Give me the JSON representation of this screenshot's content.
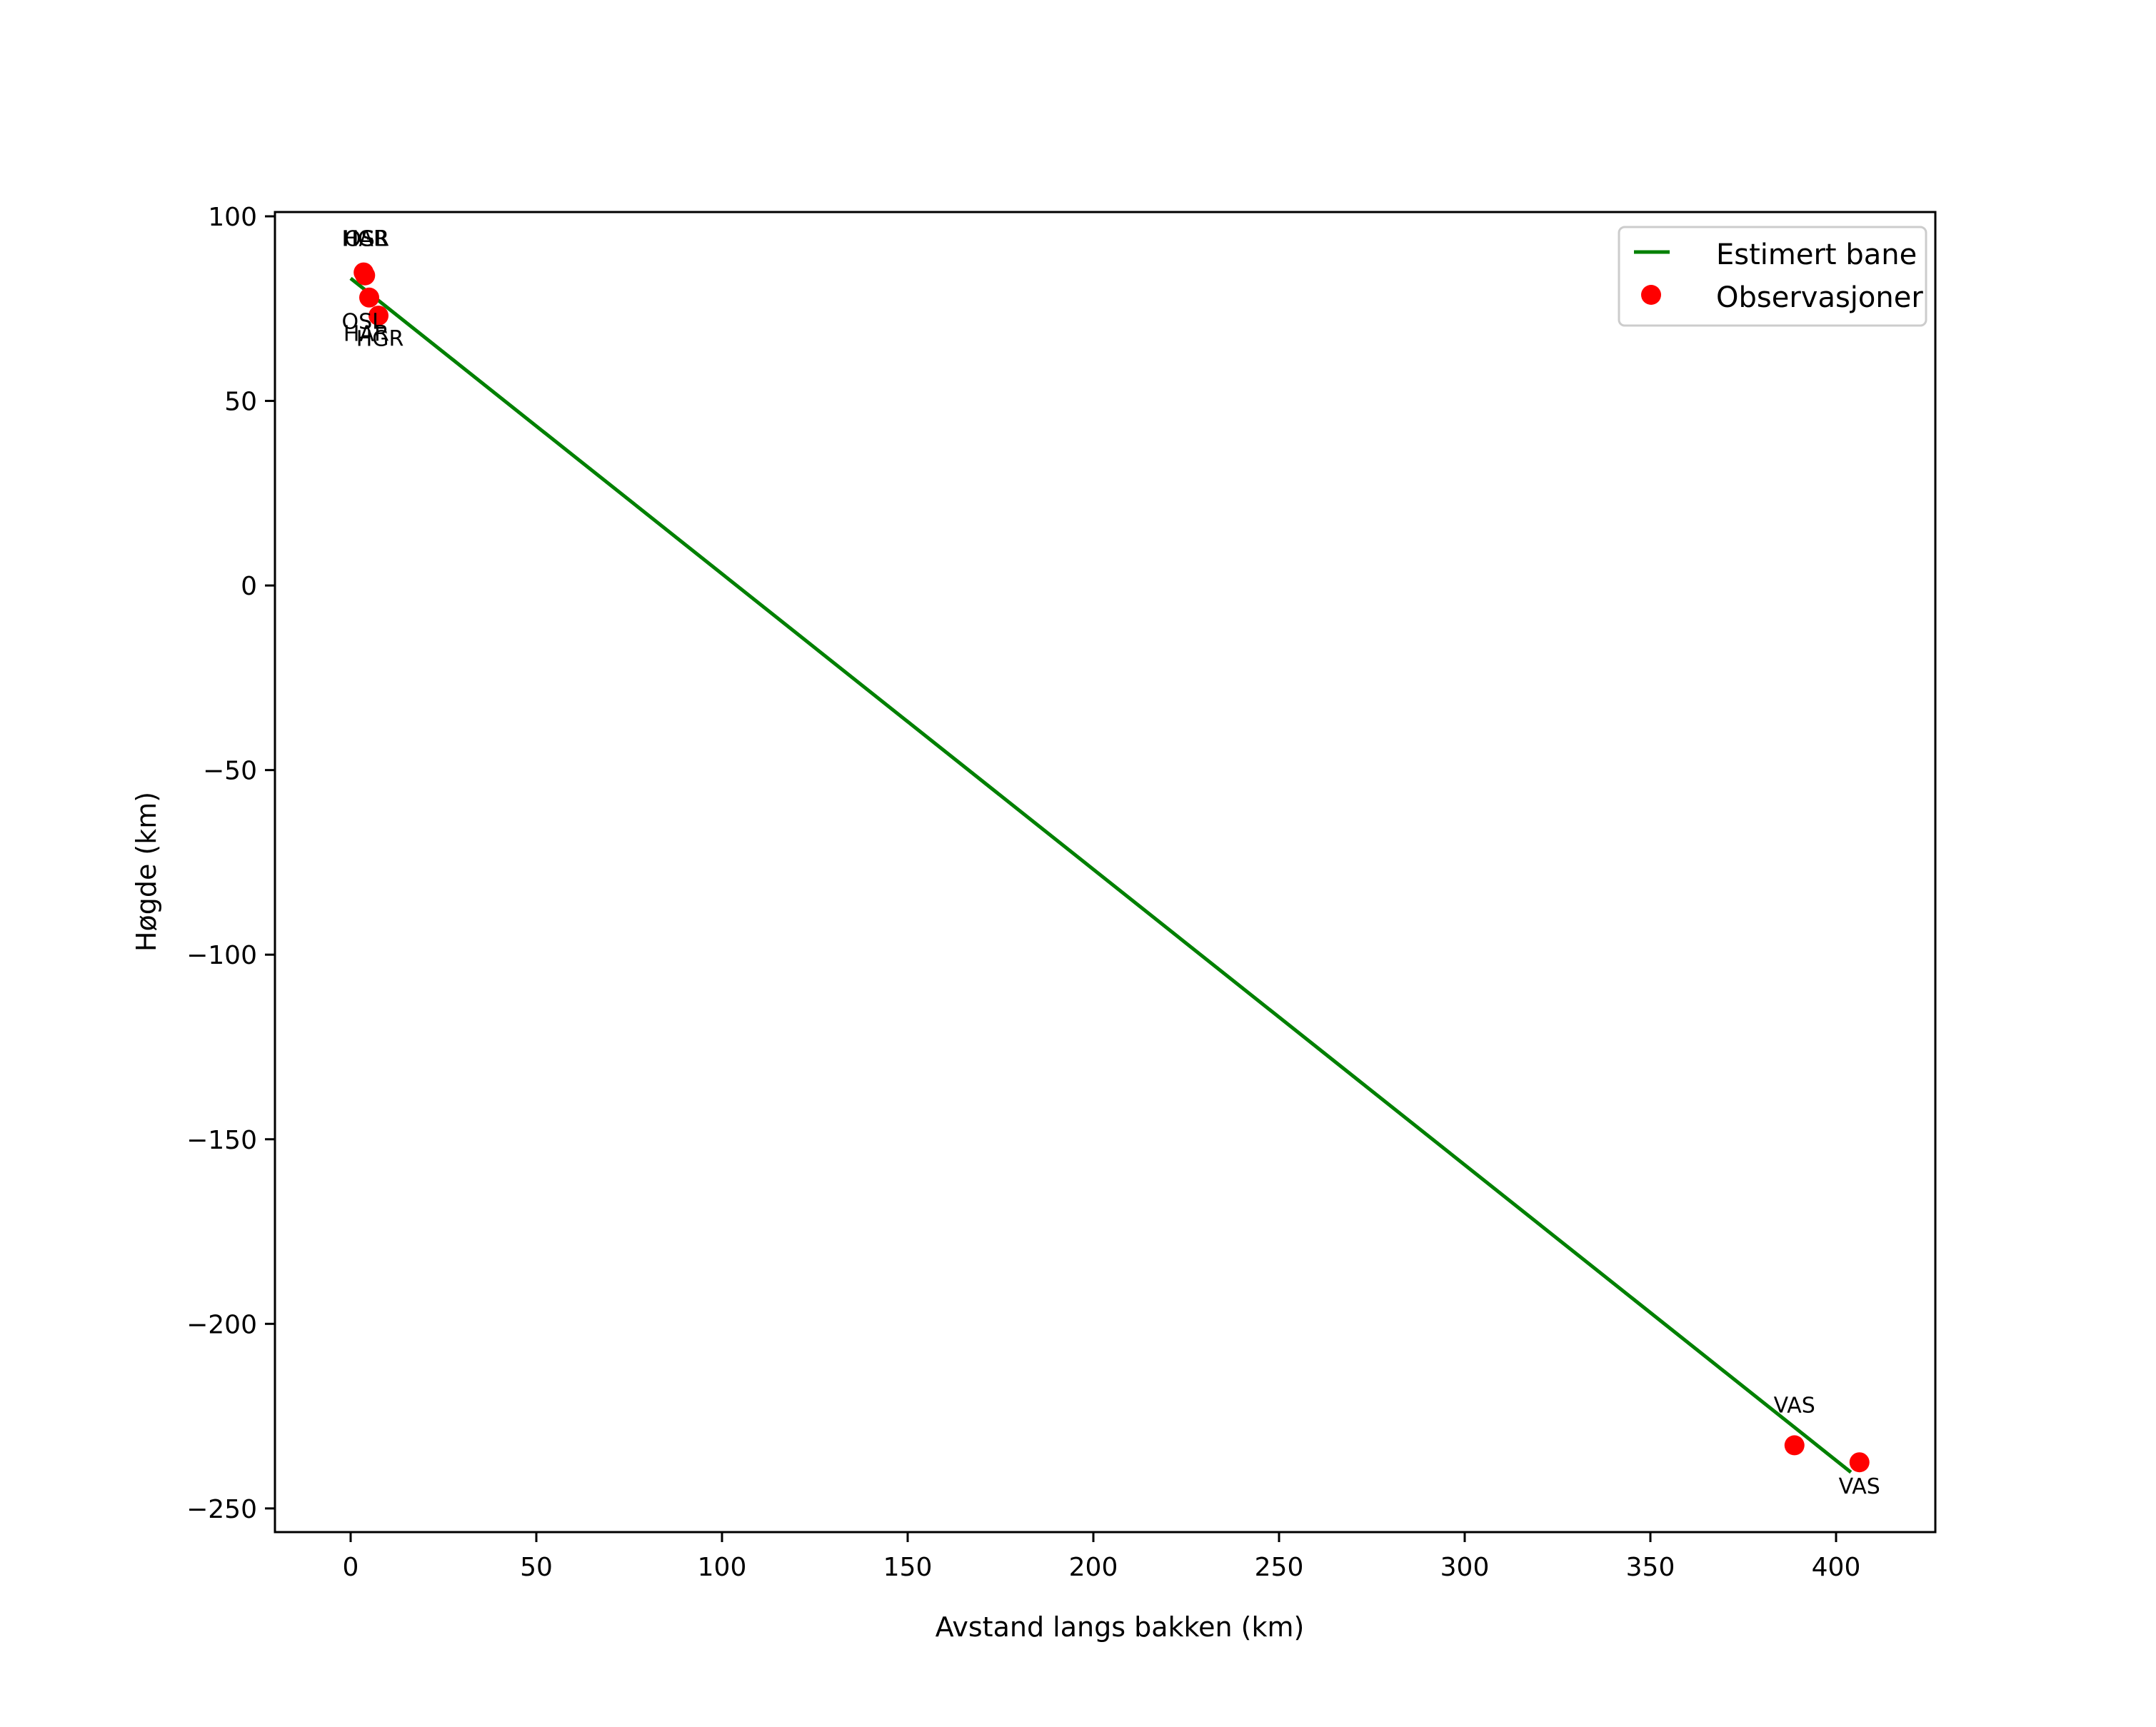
{
  "chart_data": {
    "type": "line",
    "title": "",
    "xlabel": "Avstand langs bakken (km)",
    "ylabel": "Høgde (km)",
    "xlim": [
      -20.4,
      426.7
    ],
    "ylim": [
      -256.4,
      101.2
    ],
    "grid": false,
    "legend_position": "upper right",
    "x_ticks": [
      0,
      50,
      100,
      150,
      200,
      250,
      300,
      350,
      400
    ],
    "x_tick_labels": [
      "0",
      "50",
      "100",
      "150",
      "200",
      "250",
      "300",
      "350",
      "400"
    ],
    "y_ticks": [
      100,
      50,
      0,
      -50,
      -100,
      -150,
      -200,
      -250
    ],
    "y_tick_labels": [
      "100",
      "50",
      "0",
      "−50",
      "−100",
      "−150",
      "−200",
      "−250"
    ],
    "series": [
      {
        "name": "Estimert bane",
        "kind": "line",
        "color": "#008000",
        "x": [
          0.0,
          404.0
        ],
        "y": [
          83.2,
          -240.2
        ]
      },
      {
        "name": "Observasjoner",
        "kind": "scatter",
        "color": "#ff0000",
        "points": [
          {
            "x": 3.5,
            "y": 84.8,
            "label": "HGR"
          },
          {
            "x": 3.9,
            "y": 84.0,
            "label": "OSL"
          },
          {
            "x": 5.0,
            "y": 78.0,
            "label": "HAR"
          },
          {
            "x": 7.5,
            "y": 73.1,
            "label": "OSL"
          },
          {
            "x": 388.8,
            "y": -232.9,
            "label": "VAS"
          },
          {
            "x": 406.3,
            "y": -237.5,
            "label": "VAS"
          }
        ]
      }
    ],
    "annotations": [
      {
        "text": "HGR",
        "x": 4.0,
        "y": 92.0
      },
      {
        "text": "OSL",
        "x": 4.0,
        "y": 92.0
      },
      {
        "text": "HAR",
        "x": 4.0,
        "y": 92.0
      },
      {
        "text": "OSL",
        "x": 3.3,
        "y": 69.5
      },
      {
        "text": "HAR",
        "x": 4.2,
        "y": 66.3
      },
      {
        "text": "HGR",
        "x": 7.9,
        "y": 64.9
      },
      {
        "text": "VAS",
        "x": 388.8,
        "y": -224.0
      },
      {
        "text": "VAS",
        "x": 406.3,
        "y": -246.0
      }
    ]
  },
  "legend": {
    "items": [
      {
        "label": "Estimert bane",
        "symbol": "line",
        "color": "#008000"
      },
      {
        "label": "Observasjoner",
        "symbol": "dot",
        "color": "#ff0000"
      }
    ]
  },
  "colors": {
    "line": "#008000",
    "marker": "#ff0000",
    "axes": "#000000",
    "legend_border": "#cccccc"
  }
}
